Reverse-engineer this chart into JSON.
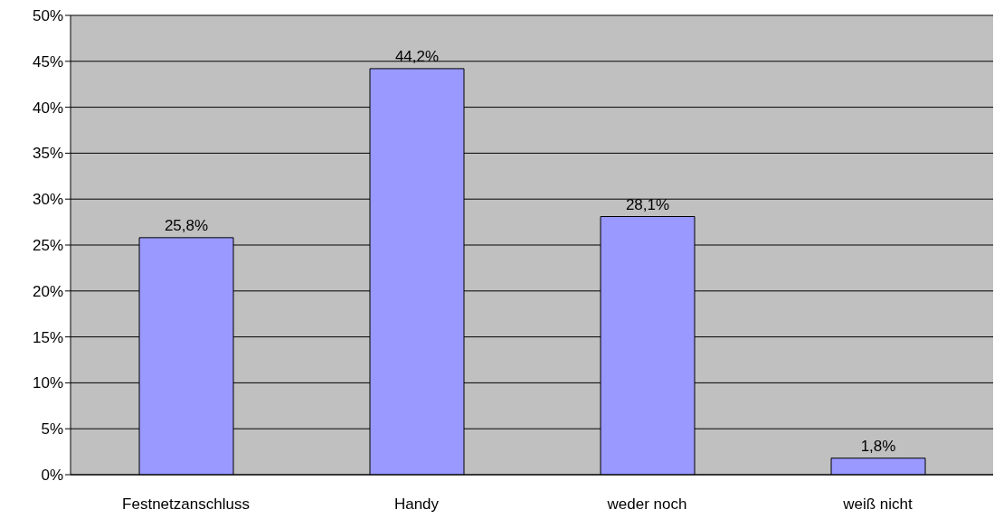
{
  "chart_data": {
    "type": "bar",
    "categories": [
      "Festnetzanschluss",
      "Handy",
      "weder noch",
      "weiß nicht"
    ],
    "values": [
      25.8,
      44.2,
      28.1,
      1.8
    ],
    "value_labels": [
      "25,8%",
      "44,2%",
      "28,1%",
      "1,8%"
    ],
    "color": "#9999ff",
    "ylim": [
      0,
      50
    ],
    "yticks": [
      {
        "value": 0,
        "label": "0%"
      },
      {
        "value": 5,
        "label": "5%"
      },
      {
        "value": 10,
        "label": "10%"
      },
      {
        "value": 15,
        "label": "15%"
      },
      {
        "value": 20,
        "label": "20%"
      },
      {
        "value": 25,
        "label": "25%"
      },
      {
        "value": 30,
        "label": "30%"
      },
      {
        "value": 35,
        "label": "35%"
      },
      {
        "value": 40,
        "label": "40%"
      },
      {
        "value": 45,
        "label": "45%"
      },
      {
        "value": 50,
        "label": "50%"
      }
    ],
    "grid": "y",
    "legend": false
  }
}
